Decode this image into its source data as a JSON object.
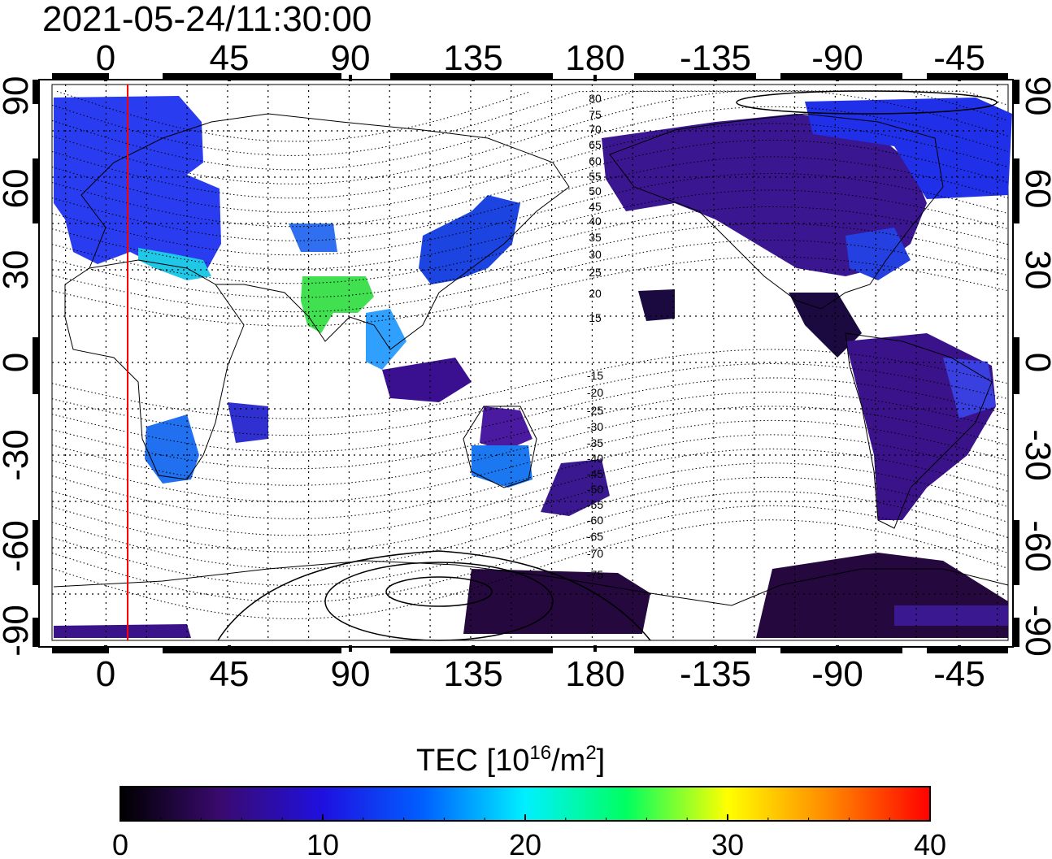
{
  "title": "2021-05-24/11:30:00",
  "chart_data": {
    "type": "map",
    "projection": "equirectangular, central longitude ~150",
    "x_ticks": [
      "0",
      "45",
      "90",
      "135",
      "180",
      "-135",
      "-90",
      "-45"
    ],
    "y_ticks_left": [
      "90",
      "60",
      "30",
      "0",
      "-30",
      "-60",
      "-90"
    ],
    "y_ticks_right": [
      "90",
      "60",
      "30",
      "0",
      "-30",
      "-60",
      "-90"
    ],
    "colorbar": {
      "label_main": "TEC  [10",
      "label_sup1": "16",
      "label_mid": "/m",
      "label_sup2": "2",
      "label_end": "]",
      "ticks": [
        "0",
        "10",
        "20",
        "30",
        "40"
      ],
      "range": [
        0,
        40
      ],
      "stops": [
        "#000000",
        "#3a0a70",
        "#1f10e0",
        "#0060ff",
        "#00f0ff",
        "#00ff60",
        "#ffff00",
        "#ff8800",
        "#ff0000"
      ]
    },
    "contour_labels_north": [
      "80",
      "75",
      "70",
      "65",
      "60",
      "55",
      "50",
      "45",
      "40",
      "35",
      "30",
      "25",
      "20",
      "15"
    ],
    "contour_labels_south": [
      "-15",
      "-20",
      "-25",
      "-30",
      "-35",
      "-40",
      "-45",
      "-50",
      "-55",
      "-60",
      "-65",
      "-70",
      "-75"
    ],
    "terminator_longitude": 8
  }
}
